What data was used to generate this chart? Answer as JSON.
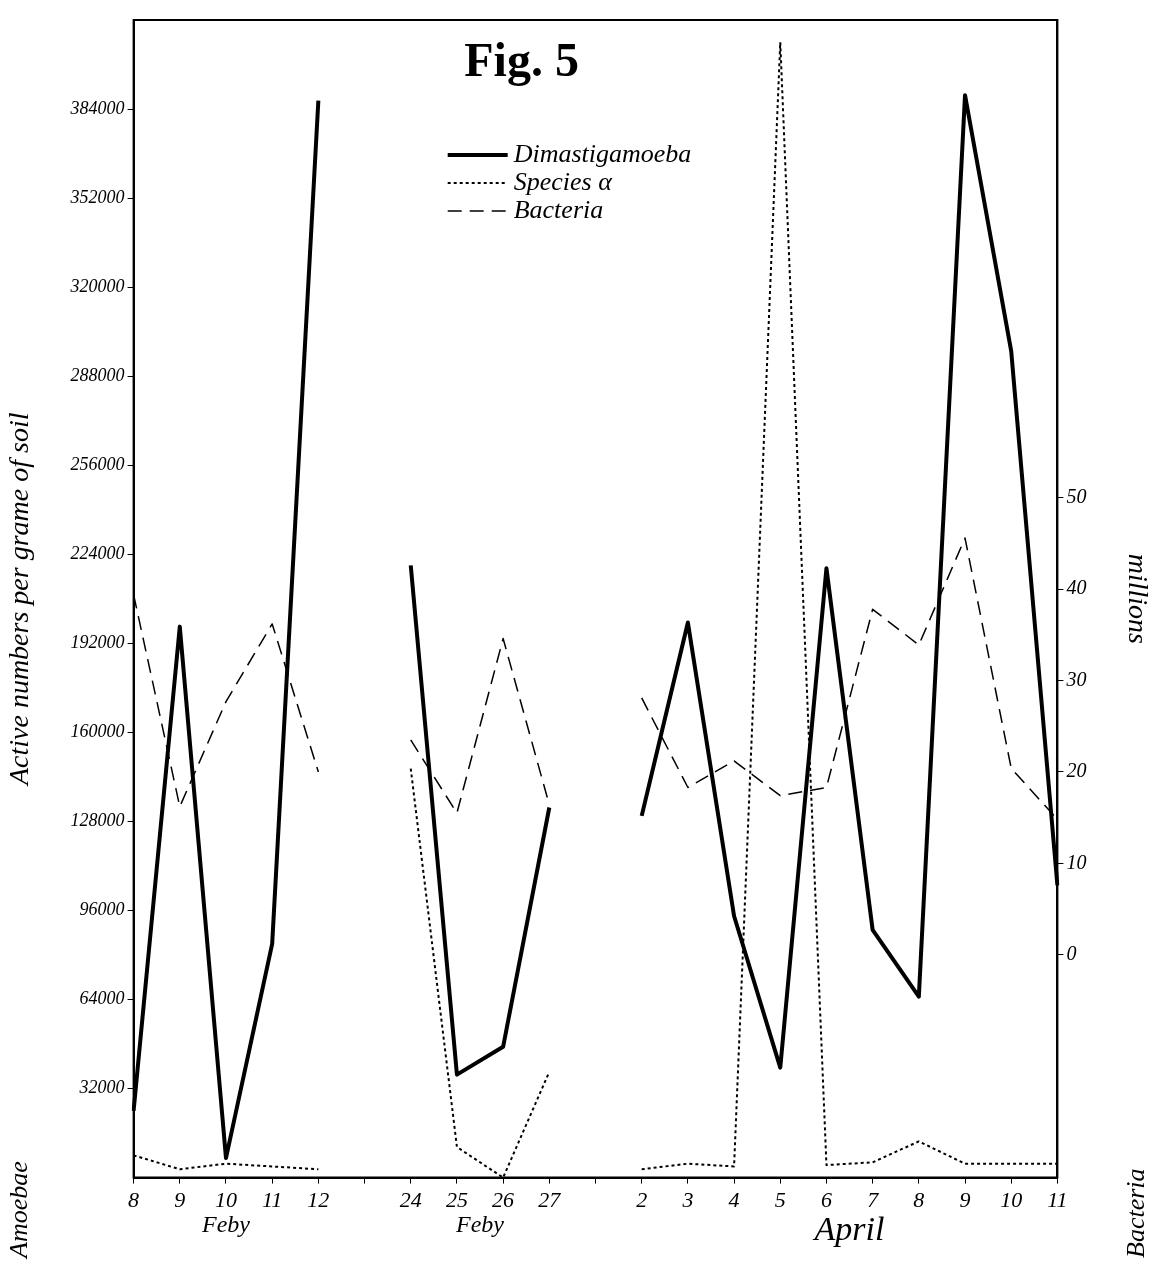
{
  "chart_data": {
    "type": "line",
    "title": "Fig. 5",
    "ylabel": "Active numbers per grame of soil",
    "y2label": "millions",
    "categories": [
      "8",
      "9",
      "10",
      "11",
      "12",
      null,
      "24",
      "25",
      "26",
      "27",
      null,
      "2",
      "3",
      "4",
      "5",
      "6",
      "7",
      "8",
      "9",
      "10",
      "11"
    ],
    "ylim": [
      0,
      416000
    ],
    "yticks": [
      32000,
      64000,
      96000,
      128000,
      160000,
      192000,
      224000,
      256000,
      288000,
      320000,
      352000,
      384000
    ],
    "y2lim": [
      -24.4,
      102.3
    ],
    "y2ticks": [
      0,
      10,
      20,
      30,
      40,
      50
    ],
    "series": [
      {
        "name": "Dimastigamoeba",
        "color": "#000000",
        "line_style": "solid",
        "values": [
          24000,
          198000,
          7000,
          84000,
          387000,
          null,
          220000,
          37000,
          47000,
          133000,
          null,
          130000,
          199500,
          94000,
          39500,
          219000,
          89000,
          65000,
          389000,
          297000,
          105000
        ]
      },
      {
        "name": "Species α",
        "color": "#000000",
        "line_style": "dotted",
        "values": [
          8000,
          3000,
          5000,
          4000,
          3000,
          null,
          147000,
          11000,
          0,
          38000,
          null,
          3000,
          5000,
          4000,
          408000,
          4500,
          5500,
          13000,
          5000,
          5000,
          5000
        ]
      },
      {
        "name": "Bacteria",
        "color": "#000000",
        "line_style": "dashed",
        "axis": "y2",
        "values": [
          39.4,
          16.2,
          27.7,
          36.2,
          20,
          null,
          23.5,
          15.5,
          34.6,
          16.4,
          null,
          28.1,
          18.3,
          21.2,
          17.4,
          18.3,
          37.8,
          33.9,
          45.6,
          20.4,
          14.8
        ]
      }
    ],
    "annotations": [
      "Feby",
      "Feby",
      "April",
      "Amoebae",
      "Bacteria"
    ],
    "grid": false,
    "legend": "top",
    "marker": "none"
  }
}
